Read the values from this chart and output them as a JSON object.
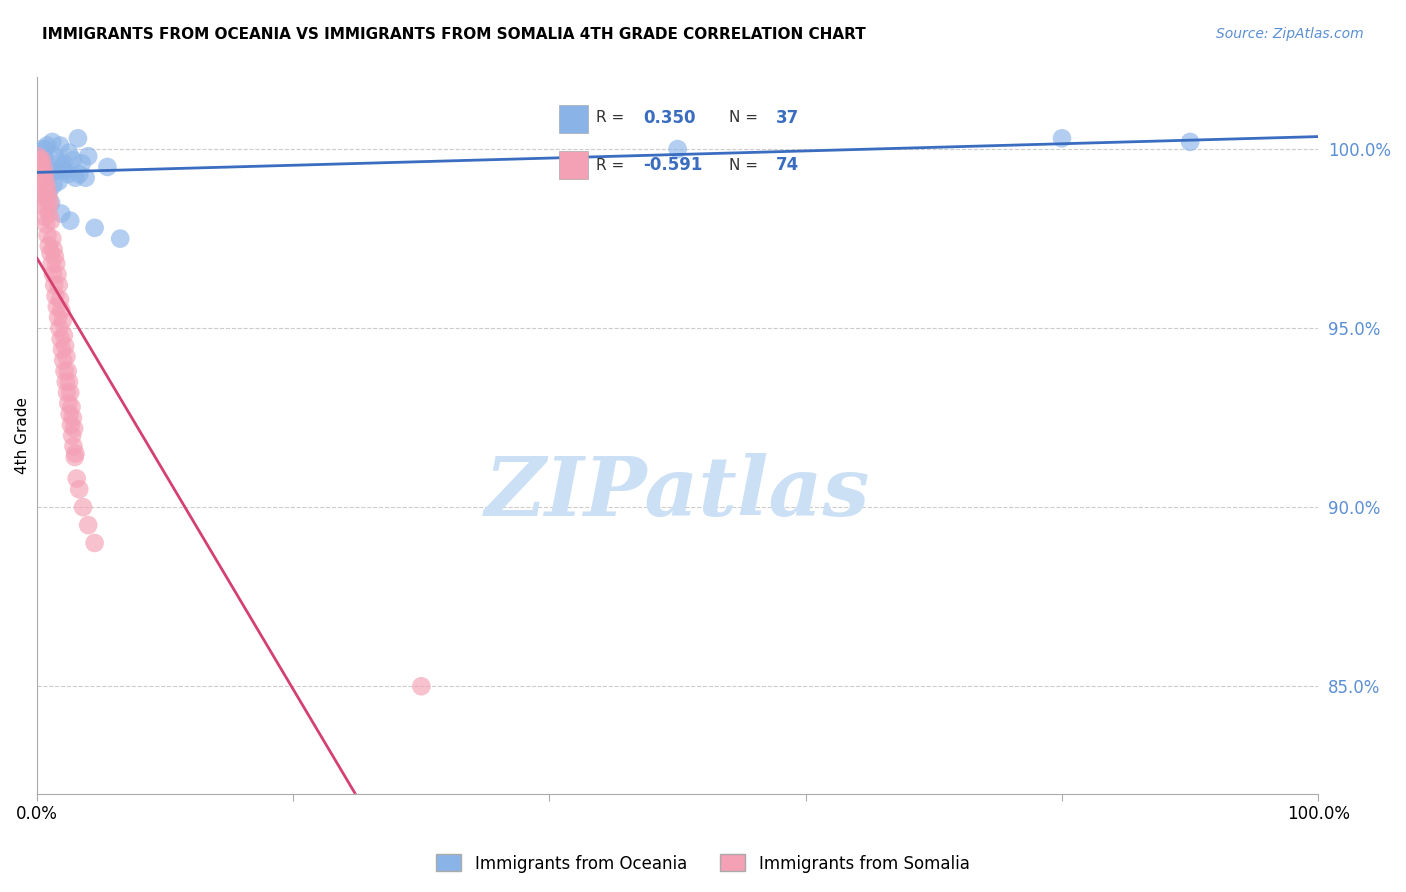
{
  "title": "IMMIGRANTS FROM OCEANIA VS IMMIGRANTS FROM SOMALIA 4TH GRADE CORRELATION CHART",
  "source_text": "Source: ZipAtlas.com",
  "ylabel": "4th Grade",
  "xlim": [
    0.0,
    100.0
  ],
  "ylim": [
    82.0,
    102.0
  ],
  "yticks": [
    85.0,
    90.0,
    95.0,
    100.0
  ],
  "ytick_labels": [
    "85.0%",
    "90.0%",
    "95.0%",
    "100.0%"
  ],
  "xticks": [
    0.0,
    20.0,
    40.0,
    60.0,
    80.0,
    100.0
  ],
  "xtick_labels": [
    "0.0%",
    "",
    "",
    "",
    "",
    "100.0%"
  ],
  "oceania_color": "#8ab4e8",
  "somalia_color": "#f4a0b5",
  "oceania_line_color": "#3a6cc0",
  "somalia_line_color": "#d44070",
  "somalia_line_dash_color": "#cccccc",
  "R_oceania": 0.35,
  "N_oceania": 37,
  "R_somalia": -0.591,
  "N_somalia": 74,
  "watermark": "ZIPatlas",
  "watermark_color": "#cce0f5",
  "legend_label_oceania": "Immigrants from Oceania",
  "legend_label_somalia": "Immigrants from Somalia",
  "oceania_x": [
    0.3,
    0.5,
    0.8,
    0.2,
    0.4,
    1.2,
    1.8,
    2.5,
    3.2,
    1.5,
    2.0,
    2.8,
    3.5,
    4.0,
    5.5,
    0.6,
    1.0,
    1.6,
    2.2,
    3.0,
    0.9,
    1.3,
    1.7,
    2.4,
    3.8,
    1.1,
    1.9,
    2.6,
    4.5,
    6.5,
    0.7,
    1.4,
    2.1,
    3.3,
    50.0,
    80.0,
    90.0
  ],
  "oceania_y": [
    99.5,
    99.8,
    100.1,
    99.6,
    100.0,
    100.2,
    100.1,
    99.9,
    100.3,
    99.4,
    99.5,
    99.7,
    99.6,
    99.8,
    99.5,
    99.7,
    99.3,
    99.6,
    99.4,
    99.2,
    98.8,
    99.0,
    99.1,
    99.3,
    99.2,
    98.5,
    98.2,
    98.0,
    97.8,
    97.5,
    100.0,
    99.8,
    99.6,
    99.3,
    100.0,
    100.3,
    100.2
  ],
  "somalia_x": [
    0.1,
    0.15,
    0.2,
    0.25,
    0.3,
    0.35,
    0.4,
    0.45,
    0.5,
    0.55,
    0.6,
    0.65,
    0.7,
    0.75,
    0.8,
    0.85,
    0.9,
    0.95,
    1.0,
    1.1,
    1.2,
    1.3,
    1.4,
    1.5,
    1.6,
    1.7,
    1.8,
    1.9,
    2.0,
    2.1,
    2.2,
    2.3,
    2.4,
    2.5,
    2.6,
    2.7,
    2.8,
    2.9,
    3.0,
    0.12,
    0.22,
    0.32,
    0.42,
    0.52,
    0.62,
    0.72,
    0.82,
    0.92,
    1.05,
    1.15,
    1.25,
    1.35,
    1.45,
    1.55,
    1.65,
    1.75,
    1.85,
    1.95,
    2.05,
    2.15,
    2.25,
    2.35,
    2.45,
    2.55,
    2.65,
    2.75,
    2.85,
    2.95,
    3.1,
    3.3,
    3.6,
    4.0,
    4.5,
    30.0
  ],
  "somalia_y": [
    99.8,
    99.5,
    99.7,
    99.3,
    99.6,
    99.4,
    99.7,
    99.2,
    99.5,
    99.0,
    99.3,
    98.8,
    99.1,
    98.6,
    98.9,
    98.4,
    98.7,
    98.2,
    98.5,
    98.0,
    97.5,
    97.2,
    97.0,
    96.8,
    96.5,
    96.2,
    95.8,
    95.5,
    95.2,
    94.8,
    94.5,
    94.2,
    93.8,
    93.5,
    93.2,
    92.8,
    92.5,
    92.2,
    91.5,
    99.6,
    99.3,
    99.0,
    98.7,
    98.4,
    98.1,
    97.9,
    97.6,
    97.3,
    97.1,
    96.8,
    96.5,
    96.2,
    95.9,
    95.6,
    95.3,
    95.0,
    94.7,
    94.4,
    94.1,
    93.8,
    93.5,
    93.2,
    92.9,
    92.6,
    92.3,
    92.0,
    91.7,
    91.4,
    90.8,
    90.5,
    90.0,
    89.5,
    89.0,
    85.0
  ]
}
